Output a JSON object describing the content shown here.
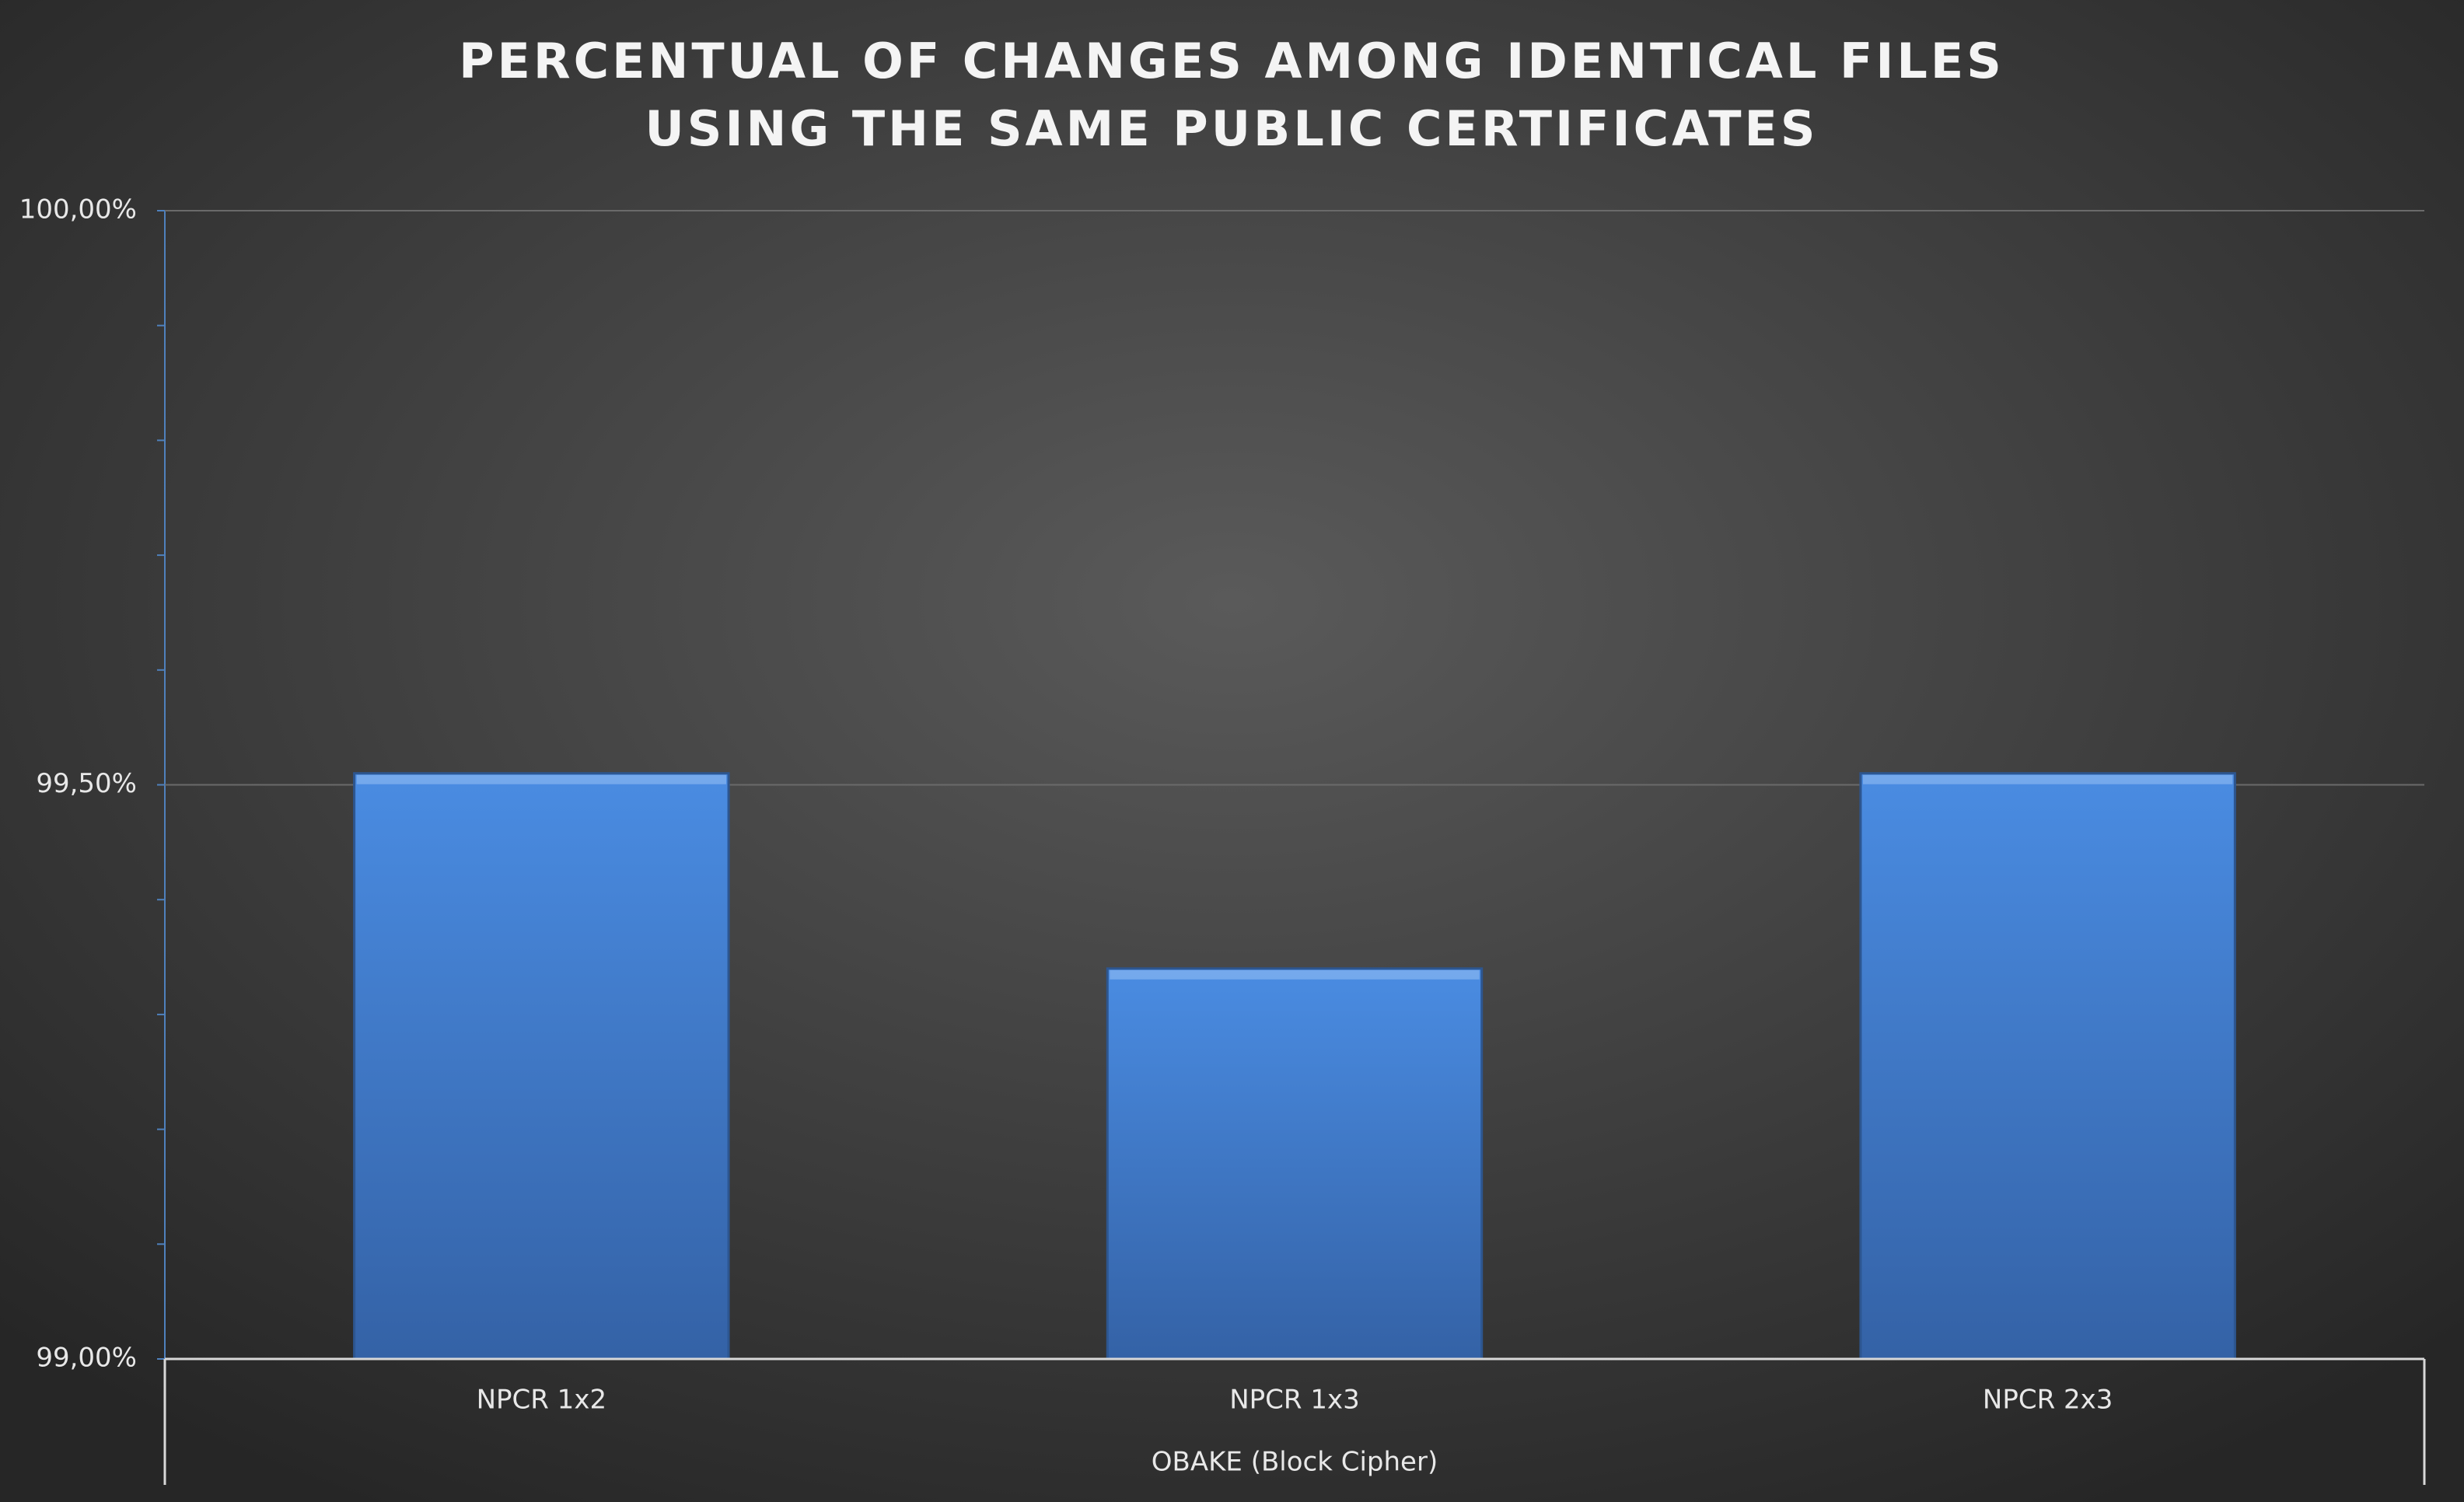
{
  "chart_data": {
    "type": "bar",
    "title": [
      "PERCENTUAL OF CHANGES AMONG IDENTICAL FILES",
      "USING THE SAME PUBLIC CERTIFICATES"
    ],
    "categories": [
      "NPCR 1x2",
      "NPCR 1x3",
      "NPCR 2x3"
    ],
    "xlabel": "OBAKE (Block Cipher)",
    "values": [
      99.51,
      99.34,
      99.51
    ],
    "color": "#3f7fd6",
    "ylim": [
      99,
      100
    ],
    "yticks": [
      {
        "value": 99,
        "label": "99,00%"
      },
      {
        "value": 99.5,
        "label": "99,50%"
      },
      {
        "value": 100,
        "label": "100,00%"
      }
    ],
    "minor_yticks": [
      99.1,
      99.2,
      99.3,
      99.4,
      99.6,
      99.7,
      99.8,
      99.9
    ],
    "grid": true
  }
}
